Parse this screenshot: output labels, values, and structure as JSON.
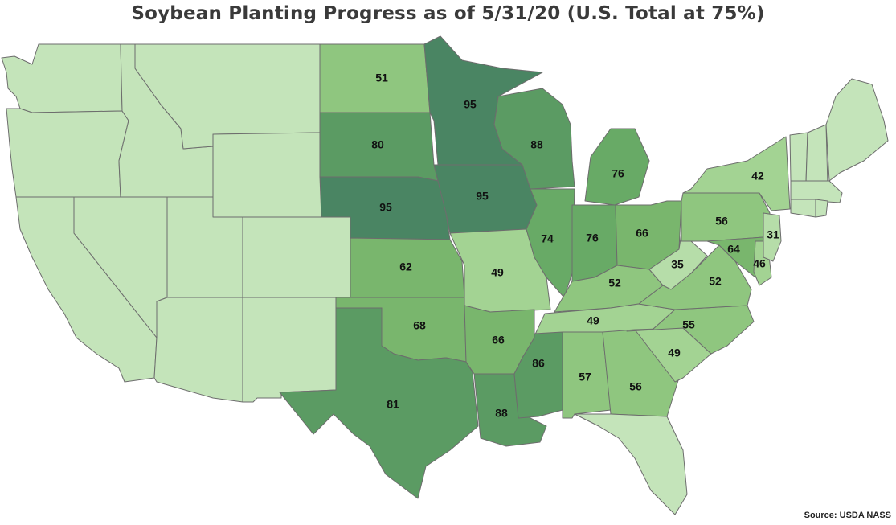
{
  "title": "Soybean Planting Progress as of 5/31/20 (U.S. Total at 75%)",
  "source": "Source: USDA NASS",
  "colors": {
    "none": "#c4e4ba",
    "r30_39": "#b6dda9",
    "r40_49": "#a3d393",
    "r50_59": "#8fc67f",
    "r60_69": "#79b66d",
    "r70_79": "#68aa66",
    "r80_89": "#5b9b63",
    "r90_99": "#4a8563",
    "border": "#6d6d6d"
  },
  "states": [
    {
      "code": "WA",
      "value": null,
      "color": "none"
    },
    {
      "code": "OR",
      "value": null,
      "color": "none"
    },
    {
      "code": "CA",
      "value": null,
      "color": "none"
    },
    {
      "code": "ID",
      "value": null,
      "color": "none"
    },
    {
      "code": "NV",
      "value": null,
      "color": "none"
    },
    {
      "code": "MT",
      "value": null,
      "color": "none"
    },
    {
      "code": "WY",
      "value": null,
      "color": "none"
    },
    {
      "code": "UT",
      "value": null,
      "color": "none"
    },
    {
      "code": "CO",
      "value": null,
      "color": "none"
    },
    {
      "code": "AZ",
      "value": null,
      "color": "none"
    },
    {
      "code": "NM",
      "value": null,
      "color": "none"
    },
    {
      "code": "ND",
      "value": 51,
      "label": "51",
      "color": "r50_59"
    },
    {
      "code": "SD",
      "value": 80,
      "label": "80",
      "color": "r80_89"
    },
    {
      "code": "NE",
      "value": 95,
      "label": "95",
      "color": "r90_99"
    },
    {
      "code": "KS",
      "value": 62,
      "label": "62",
      "color": "r60_69"
    },
    {
      "code": "OK",
      "value": 68,
      "label": "68",
      "color": "r60_69"
    },
    {
      "code": "TX",
      "value": 81,
      "label": "81",
      "color": "r80_89"
    },
    {
      "code": "MN",
      "value": 95,
      "label": "95",
      "color": "r90_99"
    },
    {
      "code": "IA",
      "value": 95,
      "label": "95",
      "color": "r90_99"
    },
    {
      "code": "MO",
      "value": 49,
      "label": "49",
      "color": "r40_49"
    },
    {
      "code": "AR",
      "value": 66,
      "label": "66",
      "color": "r60_69"
    },
    {
      "code": "LA",
      "value": 88,
      "label": "88",
      "color": "r80_89"
    },
    {
      "code": "WI",
      "value": 88,
      "label": "88",
      "color": "r80_89"
    },
    {
      "code": "IL",
      "value": 74,
      "label": "74",
      "color": "r70_79"
    },
    {
      "code": "MI",
      "value": 76,
      "label": "76",
      "color": "r70_79"
    },
    {
      "code": "IN",
      "value": 76,
      "label": "76",
      "color": "r70_79"
    },
    {
      "code": "OH",
      "value": 66,
      "label": "66",
      "color": "r60_69"
    },
    {
      "code": "KY",
      "value": 52,
      "label": "52",
      "color": "r50_59"
    },
    {
      "code": "TN",
      "value": 49,
      "label": "49",
      "color": "r40_49"
    },
    {
      "code": "MS",
      "value": 86,
      "label": "86",
      "color": "r80_89"
    },
    {
      "code": "AL",
      "value": 57,
      "label": "57",
      "color": "r50_59"
    },
    {
      "code": "GA",
      "value": 56,
      "label": "56",
      "color": "r50_59"
    },
    {
      "code": "FL",
      "value": null,
      "color": "none"
    },
    {
      "code": "SC",
      "value": 49,
      "label": "49",
      "color": "r40_49"
    },
    {
      "code": "NC",
      "value": 55,
      "label": "55",
      "color": "r50_59"
    },
    {
      "code": "VA",
      "value": 52,
      "label": "52",
      "color": "r50_59"
    },
    {
      "code": "WV",
      "value": 35,
      "label": "35",
      "color": "r30_39"
    },
    {
      "code": "PA",
      "value": 56,
      "label": "56",
      "color": "r50_59"
    },
    {
      "code": "NY",
      "value": 42,
      "label": "42",
      "color": "r40_49"
    },
    {
      "code": "MD",
      "value": 64,
      "label": "64",
      "color": "r60_69"
    },
    {
      "code": "DE",
      "value": 46,
      "label": "46",
      "color": "r40_49"
    },
    {
      "code": "NJ",
      "value": 31,
      "label": "31",
      "color": "r30_39"
    },
    {
      "code": "VT",
      "value": null,
      "color": "none"
    },
    {
      "code": "NH",
      "value": null,
      "color": "none"
    },
    {
      "code": "ME",
      "value": null,
      "color": "none"
    },
    {
      "code": "MA",
      "value": null,
      "color": "none"
    },
    {
      "code": "CT",
      "value": null,
      "color": "none"
    },
    {
      "code": "RI",
      "value": null,
      "color": "none"
    }
  ]
}
